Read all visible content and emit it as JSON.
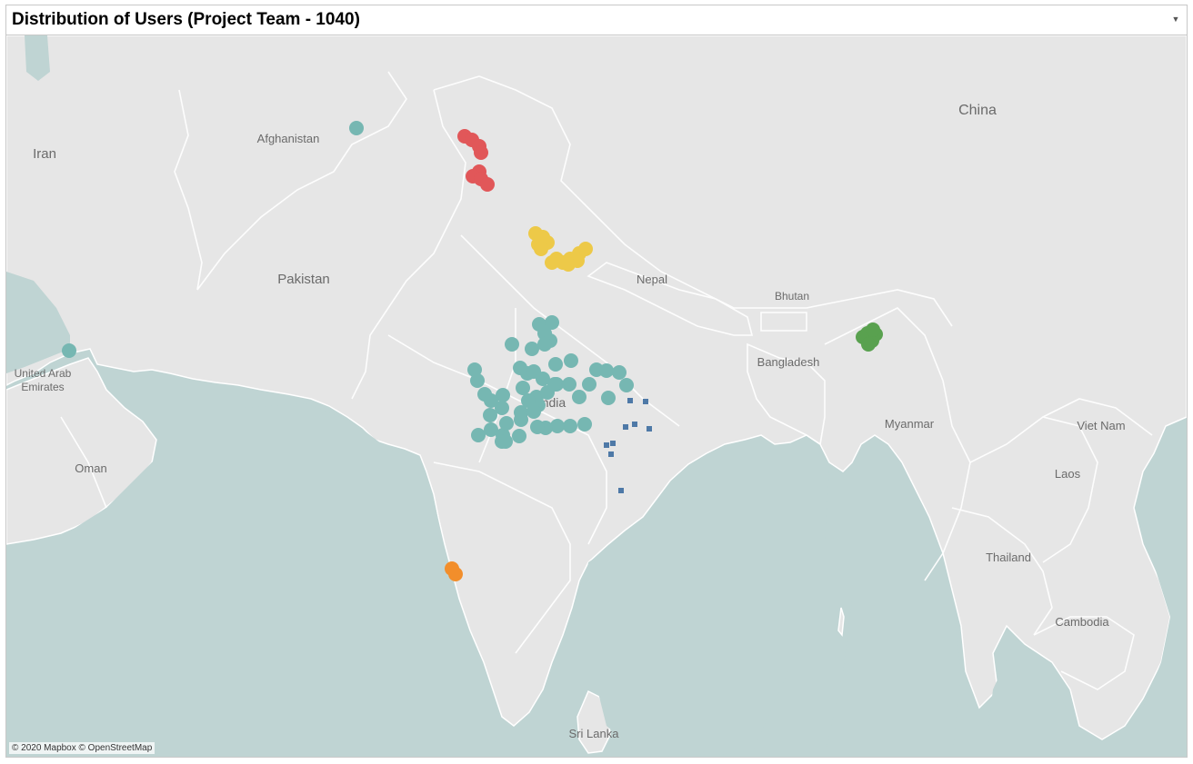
{
  "title": "Distribution of Users (Project Team - 1040)",
  "attribution": "© 2020 Mapbox © OpenStreetMap",
  "colors": {
    "water": "#bfd4d3",
    "land": "#e6e6e6",
    "border": "#ffffff",
    "label": "#6b6b6b",
    "teal": "#76b7b2",
    "red": "#e15759",
    "yellow": "#edc948",
    "green": "#59a14f",
    "orange": "#f28e2b",
    "blue": "#4e79a7"
  },
  "map_labels": [
    "Afghanistan",
    "Iran",
    "Pakistan",
    "United Arab",
    "Emirates",
    "Oman",
    "China",
    "Nepal",
    "Bhutan",
    "Bangladesh",
    "Myanmar",
    "Viet Nam",
    "Laos",
    "Thailand",
    "Cambodia",
    "Sri Lanka",
    "India"
  ],
  "marker_groups": [
    {
      "color_key": "teal",
      "shape": "circle",
      "count": 1,
      "location": "Afghanistan"
    },
    {
      "color_key": "teal",
      "shape": "circle",
      "count": 1,
      "location": "United Arab Emirates"
    },
    {
      "color_key": "red",
      "shape": "circle",
      "location": "Jammu & Kashmir"
    },
    {
      "color_key": "yellow",
      "shape": "circle",
      "location": "Uttarakhand"
    },
    {
      "color_key": "teal",
      "shape": "circle",
      "location": "Central India"
    },
    {
      "color_key": "blue",
      "shape": "square",
      "location": "Chhattisgarh"
    },
    {
      "color_key": "green",
      "shape": "circle",
      "location": "Assam"
    },
    {
      "color_key": "orange",
      "shape": "circle",
      "location": "Goa"
    }
  ]
}
